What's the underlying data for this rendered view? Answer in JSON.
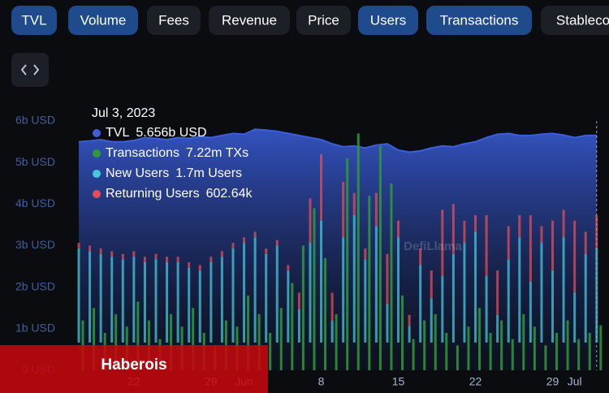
{
  "tabs": [
    {
      "label": "TVL",
      "active": true
    },
    {
      "label": "Volume",
      "active": true
    },
    {
      "label": "Fees",
      "active": false
    },
    {
      "label": "Revenue",
      "active": false
    },
    {
      "label": "Price",
      "active": false
    },
    {
      "label": "Users",
      "active": true
    },
    {
      "label": "Transactions",
      "active": true
    },
    {
      "label": "Stableco",
      "active": false
    }
  ],
  "watermark": "DefiLlama",
  "overlay_label": "Haberois",
  "chart_data": {
    "type": "bar-area",
    "categories": [
      null,
      null,
      null,
      null,
      null,
      "22",
      null,
      null,
      null,
      null,
      null,
      null,
      "29",
      null,
      null,
      "Jun",
      null,
      null,
      null,
      null,
      null,
      null,
      "8",
      null,
      null,
      null,
      null,
      null,
      null,
      "15",
      null,
      null,
      null,
      null,
      null,
      null,
      "22",
      null,
      null,
      null,
      null,
      null,
      null,
      "29",
      null,
      "Jul",
      null,
      null
    ],
    "ylim": [
      0,
      6
    ],
    "yticks": [
      {
        "value": 0,
        "label": "0 USD"
      },
      {
        "value": 1,
        "label": "1b USD"
      },
      {
        "value": 2,
        "label": "2b USD"
      },
      {
        "value": 3,
        "label": "3b USD"
      },
      {
        "value": 4,
        "label": "4b USD"
      },
      {
        "value": 5,
        "label": "5b USD"
      },
      {
        "value": 6,
        "label": "6b USD"
      }
    ],
    "series": [
      {
        "name": "TVL",
        "color": "#3d5fd6",
        "values": [
          5.5,
          5.52,
          5.55,
          5.5,
          5.5,
          5.53,
          5.6,
          5.58,
          5.55,
          5.6,
          5.58,
          5.62,
          5.6,
          5.65,
          5.7,
          5.68,
          5.8,
          5.78,
          5.75,
          5.7,
          5.65,
          5.6,
          5.55,
          5.45,
          5.38,
          5.4,
          5.35,
          5.42,
          5.45,
          5.3,
          5.25,
          5.28,
          5.35,
          5.4,
          5.38,
          5.45,
          5.5,
          5.6,
          5.68,
          5.7,
          5.65,
          5.65,
          5.68,
          5.7,
          5.66,
          5.6,
          5.65,
          5.656
        ]
      },
      {
        "name": "Transactions",
        "color": "#2f9a3c",
        "ylim": [
          0,
          40
        ],
        "values": [
          8,
          10,
          6,
          9,
          7,
          11,
          8,
          5,
          9,
          7,
          10,
          6,
          4,
          8,
          7,
          12,
          9,
          6,
          10,
          14,
          20,
          26,
          18,
          9,
          34,
          38,
          28,
          36,
          30,
          12,
          5,
          8,
          9,
          6,
          4,
          7,
          10,
          6,
          8,
          5,
          9,
          7,
          4,
          6,
          8,
          5,
          6,
          7.22
        ]
      },
      {
        "name": "New Users",
        "color": "#45c8da",
        "ylim": [
          -0.5,
          4
        ],
        "values": [
          1.7,
          1.65,
          1.6,
          1.55,
          1.5,
          1.55,
          1.45,
          1.5,
          1.45,
          1.45,
          1.35,
          1.3,
          1.45,
          1.55,
          1.7,
          1.8,
          1.9,
          1.6,
          1.75,
          1.3,
          0.6,
          1.8,
          2.2,
          0.4,
          1.9,
          2.3,
          1.5,
          2.1,
          0.7,
          1.9,
          0.3,
          1.4,
          0.8,
          1.2,
          1.6,
          1.8,
          2.0,
          1.2,
          0.5,
          1.5,
          1.9,
          1.1,
          1.8,
          1.3,
          1.9,
          0.9,
          1.6,
          1.7
        ]
      },
      {
        "name": "Returning Users",
        "color": "#e0505a",
        "ylim": [
          -0.5,
          4
        ],
        "values": [
          0.1,
          0.1,
          0.1,
          0.1,
          0.1,
          0.1,
          0.1,
          0.1,
          0.1,
          0.1,
          0.1,
          0.1,
          0.1,
          0.1,
          0.1,
          0.1,
          0.1,
          0.1,
          0.1,
          0.1,
          0.3,
          0.8,
          1.2,
          0.5,
          1.0,
          0.4,
          0.2,
          0.6,
          0.9,
          0.3,
          0.2,
          0.3,
          0.5,
          1.2,
          0.9,
          0.4,
          0.3,
          1.1,
          0.8,
          0.6,
          0.4,
          1.2,
          0.3,
          0.9,
          0.5,
          1.3,
          0.4,
          0.60264
        ]
      }
    ],
    "tooltip": {
      "title": "Jul 3, 2023",
      "labels": [
        "5.656b USD",
        "7.22m TXs",
        "1.7m Users",
        "602.64k"
      ]
    }
  }
}
